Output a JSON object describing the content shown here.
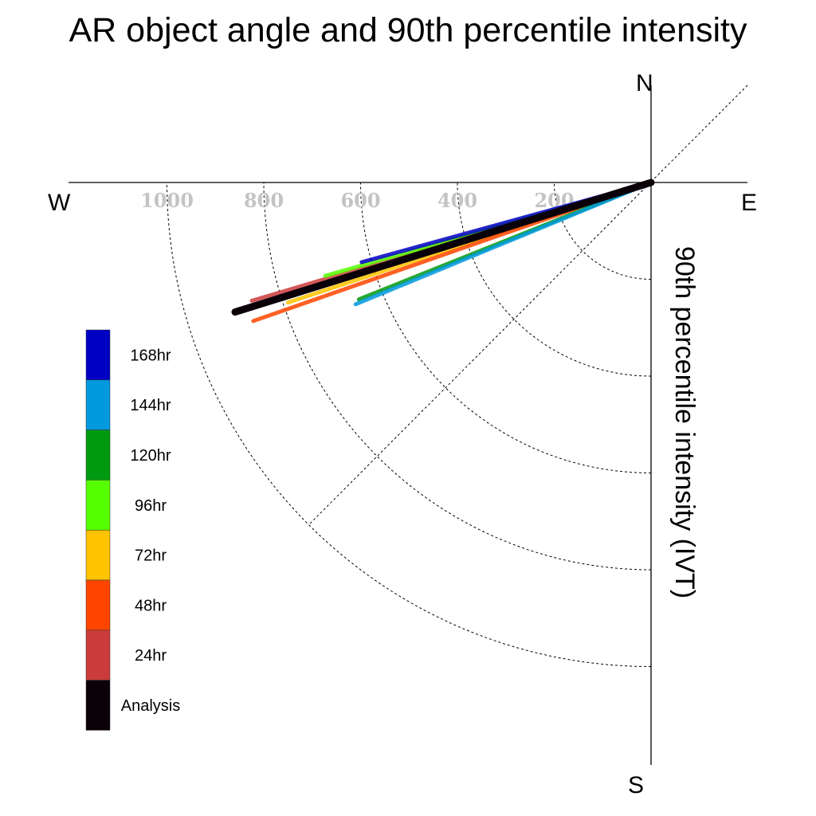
{
  "title": "AR object angle and 90th percentile intensity",
  "compass": {
    "north": "N",
    "south": "S",
    "east": "E",
    "west": "W"
  },
  "colors": {
    "Analysis": "#0a0008",
    "24hr": "#cc3b3b",
    "48hr": "#ff4500",
    "72hr": "#ffc400",
    "96hr": "#56ff00",
    "120hr": "#009a10",
    "144hr": "#0099dd",
    "168hr": "#0000c4"
  },
  "chart_data": {
    "type": "polar-vector",
    "title": "AR object angle and 90th percentile intensity",
    "ylabel": "90th percentile intensity (IVT)",
    "radial_ticks": [
      "200",
      "400",
      "600",
      "800",
      "1000"
    ],
    "radial_tick_values": [
      200,
      400,
      600,
      800,
      1000
    ],
    "rmax": 1200,
    "angle_convention": "degrees measured below the west axis (west-southwest)",
    "grid": true,
    "legend_position": "lower-left",
    "legend": [
      "168hr",
      "144hr",
      "120hr",
      "96hr",
      "72hr",
      "48hr",
      "24hr",
      "Analysis"
    ],
    "series": [
      {
        "name": "24hr",
        "intensity": 860,
        "angle": 16.5
      },
      {
        "name": "72hr",
        "intensity": 790,
        "angle": 18.3
      },
      {
        "name": "48hr",
        "intensity": 870,
        "angle": 19.2
      },
      {
        "name": "96hr",
        "intensity": 700,
        "angle": 16.0
      },
      {
        "name": "168hr",
        "intensity": 620,
        "angle": 15.4
      },
      {
        "name": "120hr",
        "intensity": 650,
        "angle": 21.8
      },
      {
        "name": "144hr",
        "intensity": 660,
        "angle": 22.4
      },
      {
        "name": "Analysis",
        "intensity": 900,
        "angle": 17.3
      }
    ]
  }
}
